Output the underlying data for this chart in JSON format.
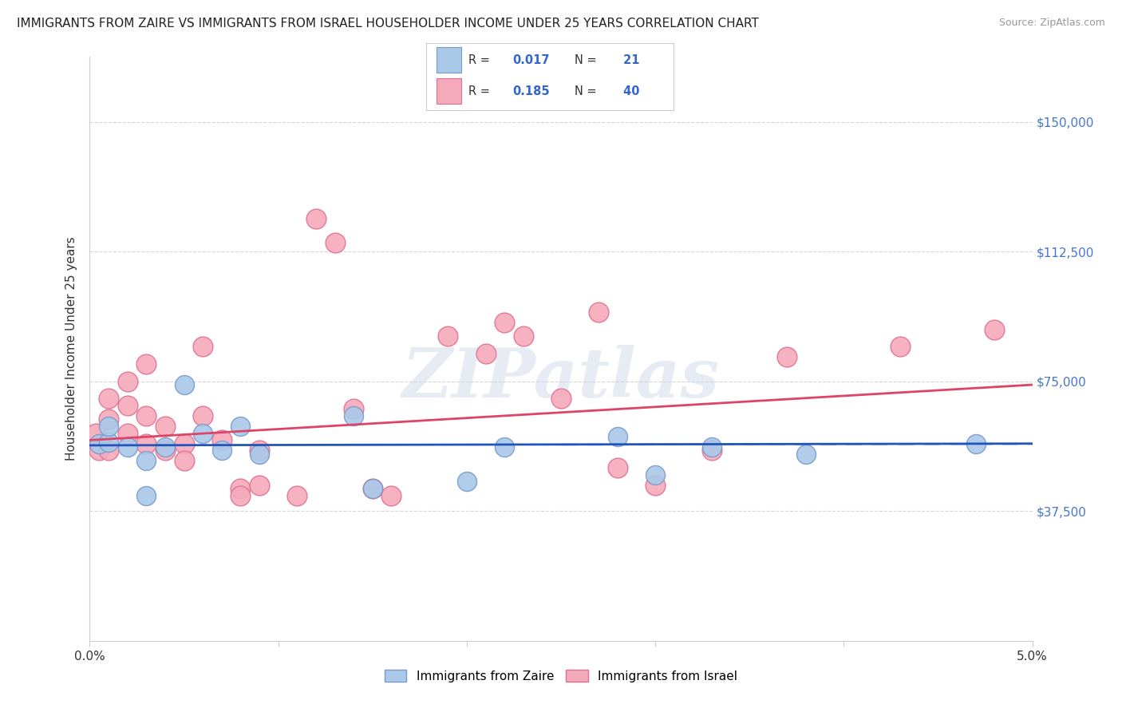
{
  "title": "IMMIGRANTS FROM ZAIRE VS IMMIGRANTS FROM ISRAEL HOUSEHOLDER INCOME UNDER 25 YEARS CORRELATION CHART",
  "source": "Source: ZipAtlas.com",
  "ylabel": "Householder Income Under 25 years",
  "xlim": [
    0.0,
    0.05
  ],
  "ylim": [
    0,
    168750
  ],
  "xticks": [
    0.0,
    0.01,
    0.02,
    0.03,
    0.04,
    0.05
  ],
  "xticklabels": [
    "0.0%",
    "",
    "",
    "",
    "",
    "5.0%"
  ],
  "ytick_positions": [
    0,
    37500,
    75000,
    112500,
    150000
  ],
  "ytick_labels": [
    "",
    "$37,500",
    "$75,000",
    "$112,500",
    "$150,000"
  ],
  "gridline_color": "#cccccc",
  "background_color": "#ffffff",
  "zaire_color": "#aac8e8",
  "israel_color": "#f5aabb",
  "zaire_edge": "#7799cc",
  "israel_edge": "#e07090",
  "zaire_line_color": "#2255bb",
  "israel_line_color": "#dd4466",
  "zaire_dash_color": "#88aadd",
  "label_zaire": "Immigrants from Zaire",
  "label_israel": "Immigrants from Israel",
  "zaire_R": "0.017",
  "zaire_N": "21",
  "israel_R": "0.185",
  "israel_N": "40",
  "zaire_points": [
    [
      0.0005,
      57000
    ],
    [
      0.001,
      57500
    ],
    [
      0.002,
      56000
    ],
    [
      0.001,
      62000
    ],
    [
      0.003,
      52000
    ],
    [
      0.003,
      42000
    ],
    [
      0.004,
      56000
    ],
    [
      0.005,
      74000
    ],
    [
      0.006,
      60000
    ],
    [
      0.007,
      55000
    ],
    [
      0.008,
      62000
    ],
    [
      0.009,
      54000
    ],
    [
      0.014,
      65000
    ],
    [
      0.015,
      44000
    ],
    [
      0.02,
      46000
    ],
    [
      0.022,
      56000
    ],
    [
      0.028,
      59000
    ],
    [
      0.03,
      48000
    ],
    [
      0.033,
      56000
    ],
    [
      0.038,
      54000
    ],
    [
      0.047,
      57000
    ]
  ],
  "israel_points": [
    [
      0.0003,
      60000
    ],
    [
      0.0005,
      55000
    ],
    [
      0.001,
      70000
    ],
    [
      0.001,
      64000
    ],
    [
      0.001,
      55000
    ],
    [
      0.002,
      68000
    ],
    [
      0.002,
      75000
    ],
    [
      0.002,
      60000
    ],
    [
      0.003,
      80000
    ],
    [
      0.003,
      65000
    ],
    [
      0.003,
      57000
    ],
    [
      0.004,
      62000
    ],
    [
      0.004,
      55000
    ],
    [
      0.005,
      57000
    ],
    [
      0.005,
      52000
    ],
    [
      0.006,
      85000
    ],
    [
      0.006,
      65000
    ],
    [
      0.007,
      58000
    ],
    [
      0.008,
      44000
    ],
    [
      0.008,
      42000
    ],
    [
      0.009,
      55000
    ],
    [
      0.009,
      45000
    ],
    [
      0.011,
      42000
    ],
    [
      0.012,
      122000
    ],
    [
      0.013,
      115000
    ],
    [
      0.014,
      67000
    ],
    [
      0.015,
      44000
    ],
    [
      0.016,
      42000
    ],
    [
      0.019,
      88000
    ],
    [
      0.021,
      83000
    ],
    [
      0.022,
      92000
    ],
    [
      0.023,
      88000
    ],
    [
      0.025,
      70000
    ],
    [
      0.027,
      95000
    ],
    [
      0.028,
      50000
    ],
    [
      0.03,
      45000
    ],
    [
      0.033,
      55000
    ],
    [
      0.037,
      82000
    ],
    [
      0.043,
      85000
    ],
    [
      0.048,
      90000
    ]
  ],
  "watermark_text": "ZIPatlas",
  "watermark_color": "#c8d4e8",
  "watermark_alpha": 0.45,
  "israel_trend_y0": 58000,
  "israel_trend_y1": 74000,
  "zaire_trend_y0": 56500,
  "zaire_trend_y1": 57000
}
